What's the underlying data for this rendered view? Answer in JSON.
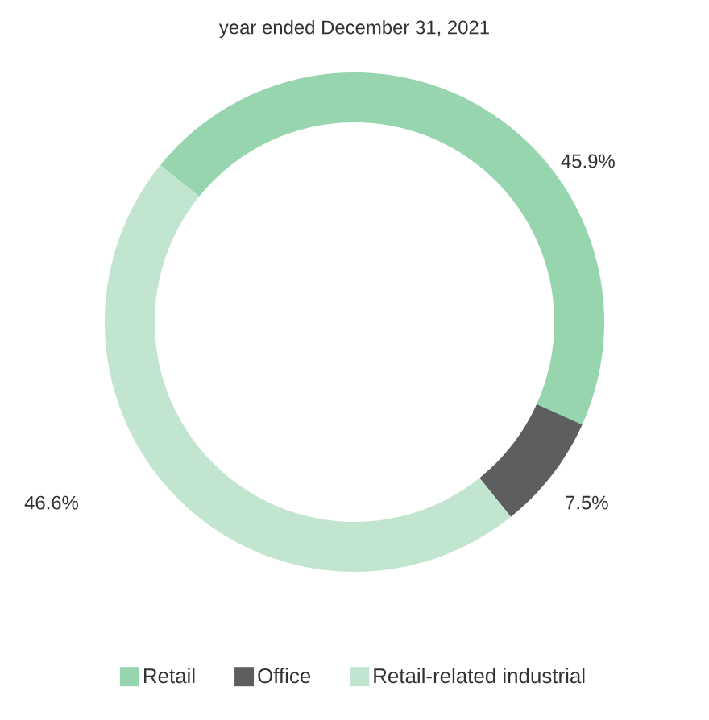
{
  "chart_data": {
    "type": "donut",
    "title": "year ended December 31, 2021",
    "categories": [
      "Retail",
      "Office",
      "Retail-related industrial"
    ],
    "values": [
      45.9,
      7.5,
      46.6
    ],
    "colors": [
      "#96d5ae",
      "#5d5e60",
      "#c2e5cf"
    ],
    "value_labels": [
      "45.9%",
      "7.5%",
      "46.6%"
    ],
    "legend": "bottom"
  }
}
